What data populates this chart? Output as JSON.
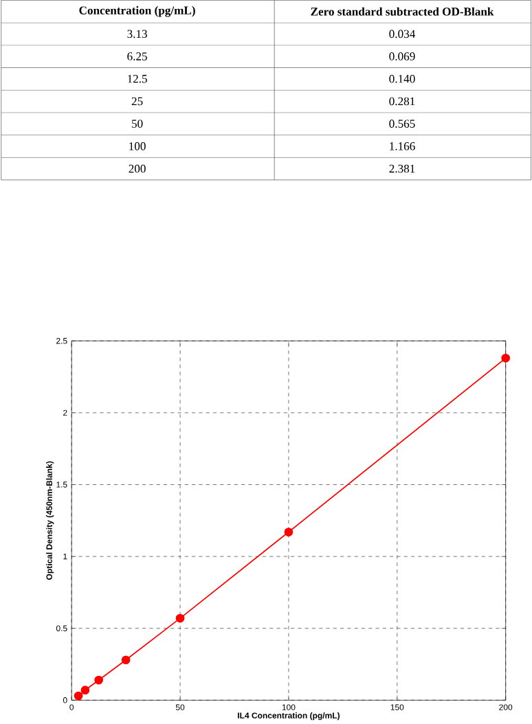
{
  "chart_data": [
    {
      "type": "other",
      "annotations": [
        "Concentration (pg/mL)",
        "Zero standard subtracted OD-Blank",
        "3.13",
        "0.034",
        "6.25",
        "0.069",
        "12.5",
        "0.140",
        "25",
        "0.281",
        "50",
        "0.565",
        "100",
        "1.166",
        "200",
        "2.381"
      ]
    },
    {
      "type": "line",
      "x": [
        3.13,
        6.25,
        12.5,
        25,
        50,
        100,
        200
      ],
      "series": [
        {
          "color": "#ff0000",
          "values": [
            0.03,
            0.07,
            0.14,
            0.28,
            0.57,
            1.17,
            2.38
          ]
        }
      ],
      "xlabel": "IL4 Concentration (pg/mL)",
      "ylabel": "Optical Density (450nm-Blank)",
      "xlim": [
        0,
        200
      ],
      "xticks": [
        0,
        50,
        100,
        150,
        200
      ],
      "ylim": [
        0,
        2.5
      ],
      "yticks": [
        0,
        0.5,
        1,
        1.5,
        2,
        2.5
      ],
      "grid": true,
      "marker": "circle",
      "line_style": "solid"
    }
  ]
}
